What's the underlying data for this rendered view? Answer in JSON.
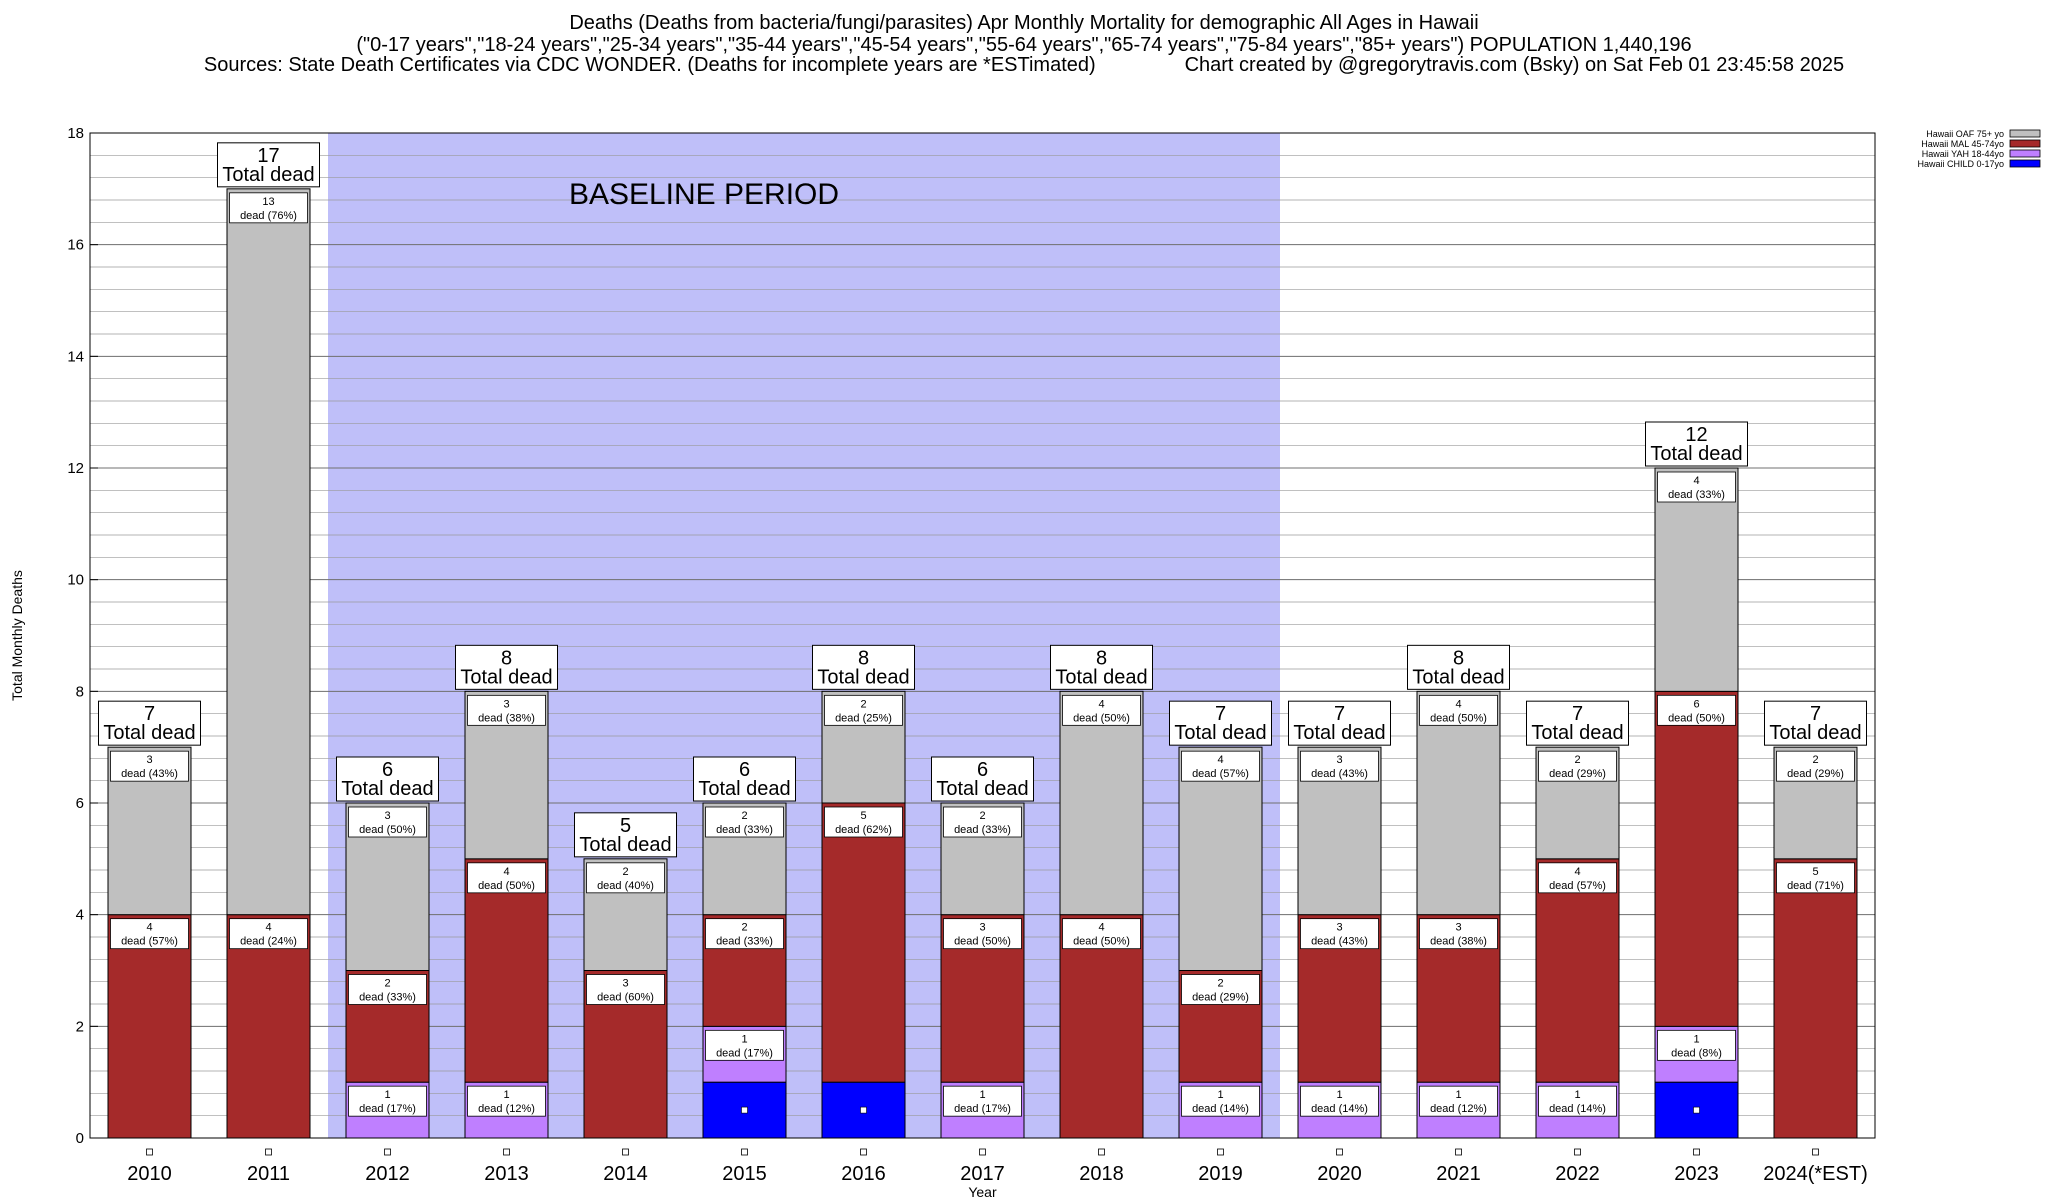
{
  "titles": {
    "line1": "Deaths (Deaths from bacteria/fungi/parasites) Apr Monthly Mortality for demographic All Ages in Hawaii",
    "line2": "(\"0-17 years\",\"18-24 years\",\"25-34 years\",\"35-44 years\",\"45-54 years\",\"55-64 years\",\"65-74 years\",\"75-84 years\",\"85+ years\") POPULATION 1,440,196",
    "line3_left": "Sources: State Death Certificates via CDC WONDER. (Deaths for incomplete years are *ESTimated)",
    "line3_right": "Chart created by @gregorytravis.com (Bsky) on Sat Feb 01 23:45:58 2025"
  },
  "chart_data": {
    "type": "bar",
    "stacked": true,
    "xlabel": "Year",
    "ylabel": "Total Monthly Deaths",
    "ylim": [
      0,
      18
    ],
    "yticks": [
      0,
      2,
      4,
      6,
      8,
      10,
      12,
      14,
      16,
      18
    ],
    "grid": true,
    "legend_position": "top-right",
    "categories": [
      "2010",
      "2011",
      "2012",
      "2013",
      "2014",
      "2015",
      "2016",
      "2017",
      "2018",
      "2019",
      "2020",
      "2021",
      "2022",
      "2023",
      "2024(*EST)"
    ],
    "series": [
      {
        "name": "Hawaii CHILD 0-17yo",
        "color": "#0000ff",
        "values": [
          0,
          0,
          0,
          0,
          0,
          1,
          1,
          0,
          0,
          0,
          0,
          0,
          0,
          1,
          0
        ],
        "labels": [
          "",
          "",
          "",
          "",
          "",
          "",
          "",
          "",
          "",
          "",
          "",
          "",
          "",
          "",
          ""
        ]
      },
      {
        "name": "Hawaii YAH 18-44yo",
        "color": "#bf7fff",
        "values": [
          0,
          0,
          1,
          1,
          0,
          1,
          0,
          1,
          0,
          1,
          1,
          1,
          1,
          1,
          0
        ],
        "labels": [
          "",
          "",
          "dead (17%)",
          "dead (12%)",
          "",
          "dead (17%)",
          "",
          "dead (17%)",
          "",
          "dead (14%)",
          "dead (14%)",
          "dead (12%)",
          "dead (14%)",
          "dead (8%)",
          ""
        ]
      },
      {
        "name": "Hawaii MAL 45-74yo",
        "color": "#a52a2a",
        "values": [
          4,
          4,
          2,
          4,
          3,
          2,
          5,
          3,
          4,
          2,
          3,
          3,
          4,
          6,
          5
        ],
        "labels": [
          "dead (57%)",
          "dead (24%)",
          "dead (33%)",
          "dead (50%)",
          "dead (60%)",
          "dead (33%)",
          "dead (62%)",
          "dead (50%)",
          "dead (50%)",
          "dead (29%)",
          "dead (43%)",
          "dead (38%)",
          "dead (57%)",
          "dead (50%)",
          "dead (71%)"
        ]
      },
      {
        "name": "Hawaii OAF 75+ yo",
        "color": "#c0c0c0",
        "values": [
          3,
          13,
          3,
          3,
          2,
          2,
          2,
          2,
          4,
          4,
          3,
          4,
          2,
          4,
          2
        ],
        "labels": [
          "dead (43%)",
          "dead (76%)",
          "dead (50%)",
          "dead (38%)",
          "dead (40%)",
          "dead (33%)",
          "dead (25%)",
          "dead (33%)",
          "dead (50%)",
          "dead (57%)",
          "dead (43%)",
          "dead (50%)",
          "dead (29%)",
          "dead (33%)",
          "dead (29%)"
        ]
      }
    ],
    "legend_order": [
      "Hawaii OAF 75+ yo",
      "Hawaii MAL 45-74yo",
      "Hawaii YAH 18-44yo",
      "Hawaii CHILD 0-17yo"
    ],
    "totals": [
      7,
      17,
      6,
      8,
      5,
      6,
      8,
      6,
      8,
      7,
      7,
      8,
      7,
      12,
      7
    ],
    "total_label": "Total dead",
    "baseline": {
      "label": "BASELINE PERIOD",
      "start": "2012",
      "end": "2019",
      "color": "#bfbff9"
    }
  }
}
